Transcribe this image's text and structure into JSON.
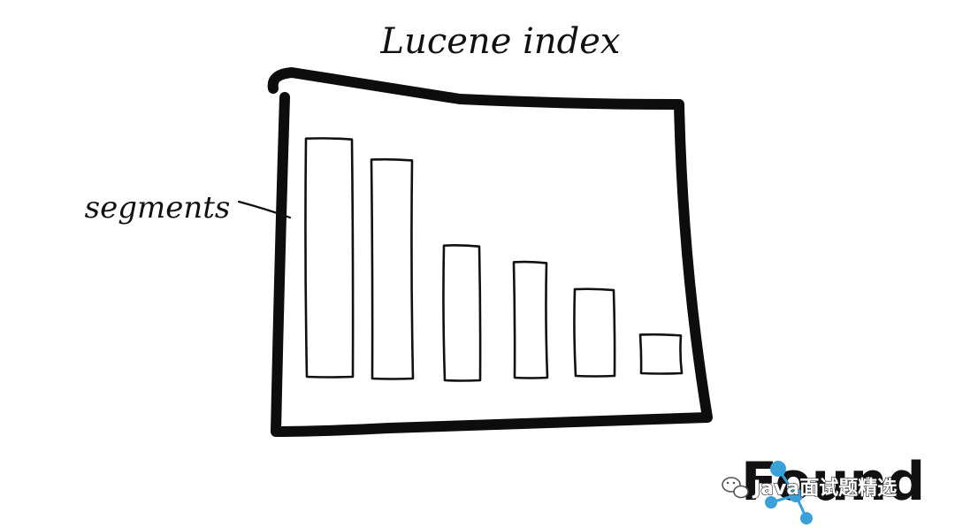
{
  "diagram": {
    "title": "Lucene index",
    "callout_label": "segments",
    "segments": [
      {
        "relative_height": 0.99
      },
      {
        "relative_height": 0.91
      },
      {
        "relative_height": 0.56
      },
      {
        "relative_height": 0.48
      },
      {
        "relative_height": 0.36
      },
      {
        "relative_height": 0.16
      }
    ]
  },
  "watermark": {
    "brand_text": "Found",
    "caption": "Java面试题精选",
    "brand_color": "#3aa0d8"
  }
}
